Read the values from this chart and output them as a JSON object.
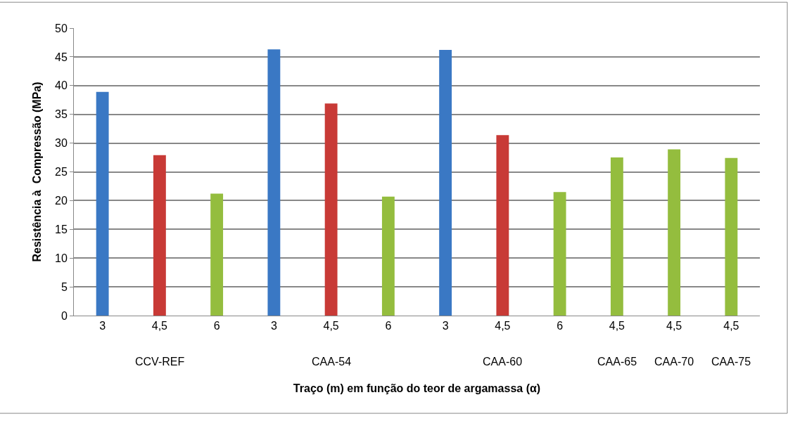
{
  "chart_data": {
    "type": "bar",
    "xlabel": "Traço (m) em função do teor de argamassa (α)",
    "ylabel": "Resistência à  Compressão (MPa)",
    "categories": [
      "3",
      "4,5",
      "6",
      "3",
      "4,5",
      "6",
      "3",
      "4,5",
      "6",
      "4,5",
      "4,5",
      "4,5"
    ],
    "series": [
      {
        "color": "#3a78c4",
        "values": [
          38.9,
          null,
          null,
          46.3,
          null,
          null,
          46.2,
          null,
          null,
          null,
          null,
          null
        ]
      },
      {
        "color": "#c83a36",
        "values": [
          null,
          27.9,
          null,
          null,
          36.9,
          null,
          null,
          31.4,
          null,
          null,
          null,
          null
        ]
      },
      {
        "color": "#94bd3e",
        "values": [
          null,
          null,
          21.2,
          null,
          null,
          20.7,
          null,
          null,
          21.5,
          27.5,
          28.9,
          27.4
        ]
      }
    ],
    "annotations": [
      "CCV-REF",
      "CAA-54",
      "CAA-60",
      "CAA-65",
      "CAA-70",
      "CAA-75"
    ],
    "ylim": [
      0,
      50
    ],
    "yticks": [
      0,
      5,
      10,
      15,
      20,
      25,
      30,
      35,
      40,
      45,
      50
    ],
    "grid": "y"
  }
}
